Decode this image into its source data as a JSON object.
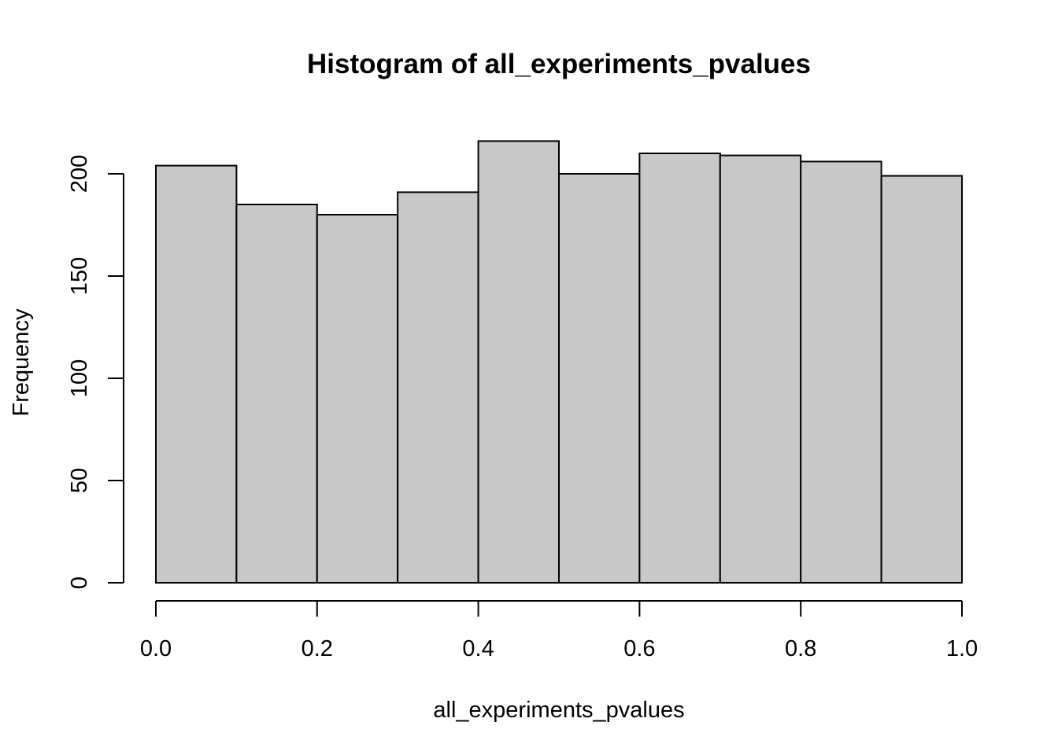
{
  "chart_data": {
    "type": "bar",
    "title": "Histogram of all_experiments_pvalues",
    "xlabel": "all_experiments_pvalues",
    "ylabel": "Frequency",
    "bins": [
      {
        "from": 0.0,
        "to": 0.1,
        "count": 204
      },
      {
        "from": 0.1,
        "to": 0.2,
        "count": 185
      },
      {
        "from": 0.2,
        "to": 0.3,
        "count": 180
      },
      {
        "from": 0.3,
        "to": 0.4,
        "count": 191
      },
      {
        "from": 0.4,
        "to": 0.5,
        "count": 216
      },
      {
        "from": 0.5,
        "to": 0.6,
        "count": 200
      },
      {
        "from": 0.6,
        "to": 0.7,
        "count": 210
      },
      {
        "from": 0.7,
        "to": 0.8,
        "count": 209
      },
      {
        "from": 0.8,
        "to": 0.9,
        "count": 206
      },
      {
        "from": 0.9,
        "to": 1.0,
        "count": 199
      }
    ],
    "xlim": [
      0.0,
      1.0
    ],
    "ylim": [
      0,
      200
    ],
    "x_ticks": [
      "0.0",
      "0.2",
      "0.4",
      "0.6",
      "0.8",
      "1.0"
    ],
    "y_ticks": [
      "0",
      "50",
      "100",
      "150",
      "200"
    ],
    "grid": false,
    "bar_color": "#c8c8c8",
    "edge_color": "#000000"
  }
}
